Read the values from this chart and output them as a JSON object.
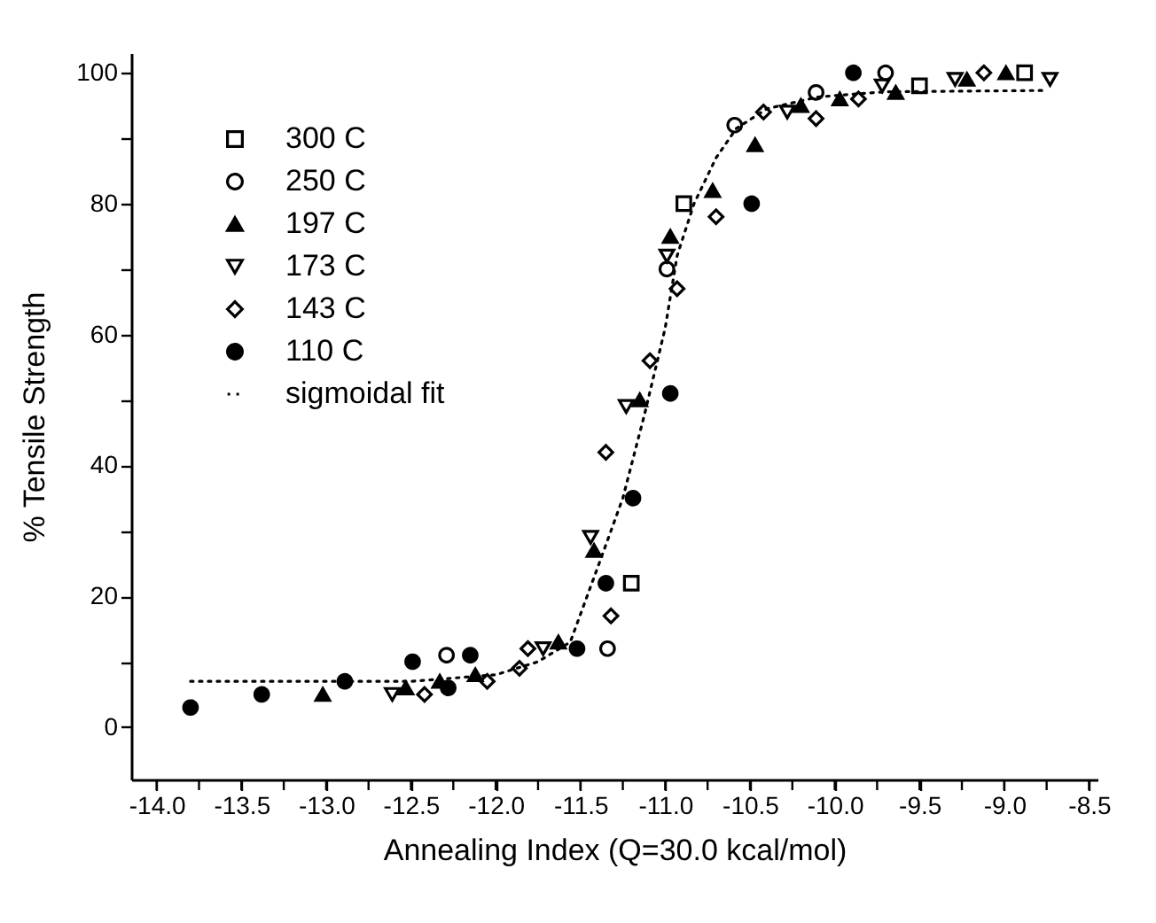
{
  "chart_data": {
    "type": "scatter",
    "xlabel": "Annealing Index (Q=30.0 kcal/mol)",
    "ylabel": "% Tensile Strength",
    "xlim": [
      -14.15,
      -8.45
    ],
    "ylim": [
      -8,
      103
    ],
    "xticks": [
      {
        "value": -14,
        "label": "-14.0"
      },
      {
        "value": -13.75,
        "label": null
      },
      -13.5,
      {
        "value": -13.25,
        "label": null
      },
      {
        "value": -13,
        "label": "-13.0"
      },
      {
        "value": -12.75,
        "label": null
      },
      -12.5,
      {
        "value": -12.25,
        "label": null
      },
      {
        "value": -12,
        "label": "-12.0"
      },
      {
        "value": -11.75,
        "label": null
      },
      -11.5,
      {
        "value": -11.25,
        "label": null
      },
      {
        "value": -11,
        "label": "-11.0"
      },
      {
        "value": -10.75,
        "label": null
      },
      -10.5,
      {
        "value": -10.25,
        "label": null
      },
      {
        "value": -10,
        "label": "-10.0"
      },
      {
        "value": -9.75,
        "label": null
      },
      -9.5,
      {
        "value": -9.25,
        "label": null
      },
      {
        "value": -9,
        "label": "-9.0"
      },
      {
        "value": -8.75,
        "label": null
      },
      -8.5
    ],
    "yticks": [
      0,
      {
        "value": 10,
        "label": null
      },
      20,
      {
        "value": 30,
        "label": null
      },
      40,
      {
        "value": 50,
        "label": null
      },
      60,
      {
        "value": 70,
        "label": null
      },
      80,
      {
        "value": 90,
        "label": null
      },
      100
    ],
    "grid": false,
    "legend": "top left",
    "series": [
      {
        "name": "300 C",
        "color": "#000000",
        "marker": "square-open",
        "x": [
          -11.2,
          -10.89,
          -9.5,
          -8.88
        ],
        "values": [
          22,
          80,
          98,
          100
        ]
      },
      {
        "name": "250 C",
        "color": "#000000",
        "marker": "circle-open",
        "x": [
          -12.29,
          -11.34,
          -10.99,
          -10.59,
          -10.11,
          -9.7
        ],
        "values": [
          11,
          12,
          70,
          92,
          97,
          100
        ]
      },
      {
        "name": "197 C",
        "color": "#000000",
        "marker": "triangle",
        "x": [
          -13.02,
          -12.53,
          -12.33,
          -12.12,
          -11.63,
          -11.42,
          -11.15,
          -10.97,
          -10.72,
          -10.47,
          -10.2,
          -9.97,
          -9.64,
          -9.22,
          -8.99
        ],
        "values": [
          5,
          6,
          7,
          8,
          13,
          27,
          50,
          75,
          82,
          89,
          95,
          96,
          97,
          99,
          100
        ]
      },
      {
        "name": "173 C",
        "color": "#000000",
        "marker": "triangle-down-open",
        "x": [
          -12.61,
          -11.72,
          -11.44,
          -11.23,
          -10.99,
          -10.28,
          -9.72,
          -9.29,
          -8.73
        ],
        "values": [
          5,
          12,
          29,
          49,
          72,
          94,
          98,
          99,
          99
        ]
      },
      {
        "name": "143 C",
        "color": "#000000",
        "marker": "diamond-open",
        "x": [
          -12.42,
          -12.05,
          -11.86,
          -11.81,
          -11.32,
          -11.35,
          -11.09,
          -10.93,
          -10.7,
          -10.42,
          -10.11,
          -9.86,
          -9.12
        ],
        "values": [
          5,
          7,
          9,
          12,
          17,
          42,
          56,
          67,
          78,
          94,
          93,
          96,
          100
        ]
      },
      {
        "name": "110 C",
        "color": "#000000",
        "marker": "circle",
        "x": [
          -13.8,
          -13.38,
          -12.89,
          -12.49,
          -12.28,
          -12.15,
          -11.52,
          -11.35,
          -11.19,
          -10.97,
          -10.49,
          -9.89
        ],
        "values": [
          3,
          5,
          7,
          10,
          6,
          11,
          12,
          22,
          35,
          51,
          80,
          100
        ]
      },
      {
        "name": "sigmoidal fit",
        "type": "line",
        "color": "#000000",
        "line_style": "dotted",
        "marker": "none",
        "x": [
          -13.8,
          -12.5,
          -12.0,
          -11.75,
          -11.56,
          -11.39,
          -11.25,
          -11.12,
          -11.0,
          -10.93,
          -10.83,
          -10.7,
          -10.58,
          -10.4,
          -10.1,
          -9.7,
          -8.75
        ],
        "values": [
          7,
          7,
          8,
          10,
          13,
          25,
          35,
          48,
          61,
          72,
          80,
          87,
          91.5,
          94.5,
          96.3,
          97.1,
          97.3
        ]
      }
    ]
  }
}
